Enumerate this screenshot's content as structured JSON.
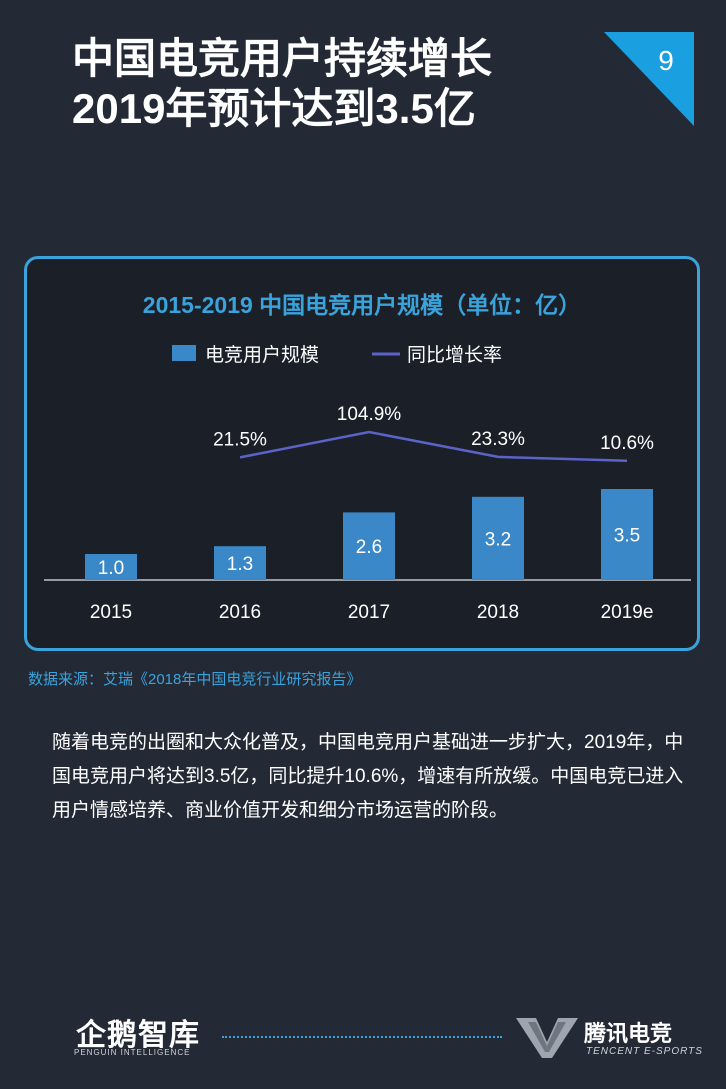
{
  "header": {
    "title_line1": "中国电竞用户持续增长",
    "title_line2": "2019年预计达到3.5亿",
    "page_number": "9"
  },
  "chart_data": {
    "type": "bar",
    "title": "2015-2019 中国电竞用户规模（单位：亿）",
    "categories": [
      "2015",
      "2016",
      "2017",
      "2018",
      "2019e"
    ],
    "legend": [
      "电竞用户规模",
      "同比增长率"
    ],
    "series": [
      {
        "name": "电竞用户规模",
        "type": "bar",
        "values": [
          1.0,
          1.3,
          2.6,
          3.2,
          3.5
        ],
        "labels": [
          "1.0",
          "1.3",
          "2.6",
          "3.2",
          "3.5"
        ]
      },
      {
        "name": "同比增长率",
        "type": "line",
        "values": [
          null,
          21.5,
          104.9,
          23.3,
          10.6
        ],
        "labels": [
          "",
          "21.5%",
          "104.9%",
          "23.3%",
          "10.6%"
        ]
      }
    ],
    "colors": {
      "bar": "#3a88c8",
      "line": "#5b62c8",
      "title": "#3aa3dc"
    }
  },
  "source": "数据来源：艾瑞《2018年中国电竞行业研究报告》",
  "body_text": "随着电竞的出圈和大众化普及，中国电竞用户基础进一步扩大，2019年，中国电竞用户将达到3.5亿，同比提升10.6%，增速有所放缓。中国电竞已进入用户情感培养、商业价值开发和细分市场运营的阶段。",
  "footer": {
    "left_logo_cn": "企鹅智库",
    "left_logo_en": "PENGUIN INTELLIGENCE",
    "right_logo_cn": "腾讯电竞",
    "right_logo_en": "TENCENT E-SPORTS"
  }
}
